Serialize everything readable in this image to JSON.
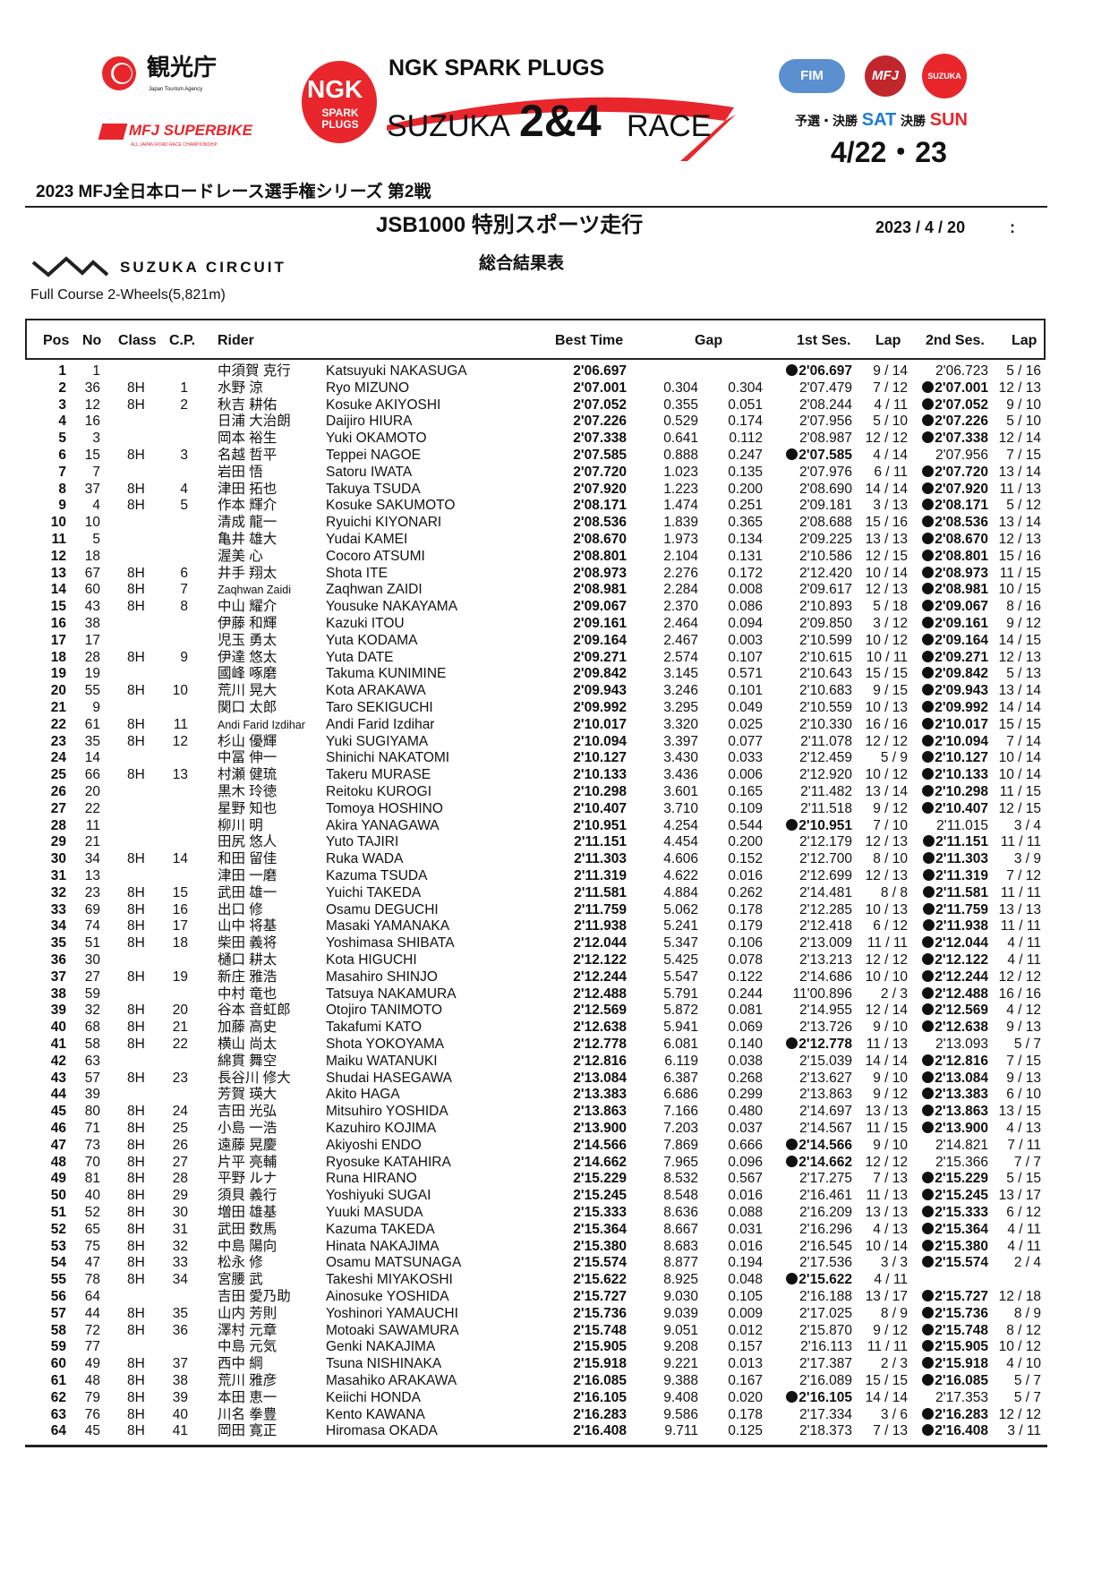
{
  "logos": {
    "tourism": {
      "jp": "観光庁",
      "en": "Japan Tourism Agency"
    },
    "superbike": {
      "text": "MFJ SUPERBIKE",
      "sub": "ALL JAPAN ROAD RACE CHAMPIONSHIP"
    },
    "ngk": {
      "badge": "NGK",
      "badge_sub": "SPARK PLUGS",
      "headline": "NGK SPARK PLUGS",
      "race_pre": "SUZUKA",
      "race_num": "2&4",
      "race_post": "RACE"
    },
    "orgs": [
      "FIM",
      "MFJ",
      "SUZUKA"
    ],
    "schedule": {
      "qual_label": "予選・決勝",
      "sat": "SAT",
      "final_label": "決勝",
      "sun": "SUN",
      "dates": "4/22・23"
    },
    "circuit": "SUZUKA CIRCUIT"
  },
  "colors": {
    "red": "#e8262c",
    "blue": "#1e7bd6",
    "text": "#111111"
  },
  "series_title": "2023 MFJ全日本ロードレース選手権シリーズ 第2戦",
  "session_title": "JSB1000 特別スポーツ走行",
  "date": "2023 / 4 / 20",
  "time": ":",
  "results_title": "総合結果表",
  "course": "Full Course 2-Wheels(5,821m)",
  "columns": {
    "pos": "Pos",
    "no": "No",
    "class": "Class",
    "cp": "C.P.",
    "rider": "Rider",
    "best": "Best Time",
    "gap": "Gap",
    "s1": "1st Ses.",
    "lap1": "Lap",
    "s2": "2nd Ses.",
    "lap2": "Lap"
  },
  "row_fields": [
    "pos",
    "no",
    "class",
    "cp",
    "rider_jp",
    "rider_en",
    "best_time",
    "gap",
    "diff",
    "ses1",
    "lap1",
    "ses2",
    "lap2",
    "best_session"
  ],
  "rows": [
    [
      "1",
      "1",
      "",
      "",
      "中須賀 克行",
      "Katsuyuki NAKASUGA",
      "2'06.697",
      "",
      "",
      "2'06.697",
      "9 / 14",
      "2'06.723",
      "5 / 16",
      1
    ],
    [
      "2",
      "36",
      "8H",
      "1",
      "水野 涼",
      "Ryo MIZUNO",
      "2'07.001",
      "0.304",
      "0.304",
      "2'07.479",
      "7 / 12",
      "2'07.001",
      "12 / 13",
      2
    ],
    [
      "3",
      "12",
      "8H",
      "2",
      "秋吉 耕佑",
      "Kosuke AKIYOSHI",
      "2'07.052",
      "0.355",
      "0.051",
      "2'08.244",
      "4 / 11",
      "2'07.052",
      "9 / 10",
      2
    ],
    [
      "4",
      "16",
      "",
      "",
      "日浦 大治朗",
      "Daijiro HIURA",
      "2'07.226",
      "0.529",
      "0.174",
      "2'07.956",
      "5 / 10",
      "2'07.226",
      "5 / 10",
      2
    ],
    [
      "5",
      "3",
      "",
      "",
      "岡本 裕生",
      "Yuki OKAMOTO",
      "2'07.338",
      "0.641",
      "0.112",
      "2'08.987",
      "12 / 12",
      "2'07.338",
      "12 / 14",
      2
    ],
    [
      "6",
      "15",
      "8H",
      "3",
      "名越 哲平",
      "Teppei NAGOE",
      "2'07.585",
      "0.888",
      "0.247",
      "2'07.585",
      "4 / 14",
      "2'07.956",
      "7 / 15",
      1
    ],
    [
      "7",
      "7",
      "",
      "",
      "岩田 悟",
      "Satoru IWATA",
      "2'07.720",
      "1.023",
      "0.135",
      "2'07.976",
      "6 / 11",
      "2'07.720",
      "13 / 14",
      2
    ],
    [
      "8",
      "37",
      "8H",
      "4",
      "津田 拓也",
      "Takuya TSUDA",
      "2'07.920",
      "1.223",
      "0.200",
      "2'08.690",
      "14 / 14",
      "2'07.920",
      "11 / 13",
      2
    ],
    [
      "9",
      "4",
      "8H",
      "5",
      "作本 輝介",
      "Kosuke SAKUMOTO",
      "2'08.171",
      "1.474",
      "0.251",
      "2'09.181",
      "3 / 13",
      "2'08.171",
      "5 / 12",
      2
    ],
    [
      "10",
      "10",
      "",
      "",
      "清成 龍一",
      "Ryuichi KIYONARI",
      "2'08.536",
      "1.839",
      "0.365",
      "2'08.688",
      "15 / 16",
      "2'08.536",
      "13 / 14",
      2
    ],
    [
      "11",
      "5",
      "",
      "",
      "亀井 雄大",
      "Yudai KAMEI",
      "2'08.670",
      "1.973",
      "0.134",
      "2'09.225",
      "13 / 13",
      "2'08.670",
      "12 / 13",
      2
    ],
    [
      "12",
      "18",
      "",
      "",
      "渥美 心",
      "Cocoro ATSUMI",
      "2'08.801",
      "2.104",
      "0.131",
      "2'10.586",
      "12 / 15",
      "2'08.801",
      "15 / 16",
      2
    ],
    [
      "13",
      "67",
      "8H",
      "6",
      "井手 翔太",
      "Shota ITE",
      "2'08.973",
      "2.276",
      "0.172",
      "2'12.420",
      "10 / 14",
      "2'08.973",
      "11 / 15",
      2
    ],
    [
      "14",
      "60",
      "8H",
      "7",
      "Zaqhwan Zaidi",
      "Zaqhwan ZAIDI",
      "2'08.981",
      "2.284",
      "0.008",
      "2'09.617",
      "12 / 13",
      "2'08.981",
      "10 / 15",
      2
    ],
    [
      "15",
      "43",
      "8H",
      "8",
      "中山 耀介",
      "Yousuke NAKAYAMA",
      "2'09.067",
      "2.370",
      "0.086",
      "2'10.893",
      "5 / 18",
      "2'09.067",
      "8 / 16",
      2
    ],
    [
      "16",
      "38",
      "",
      "",
      "伊藤 和輝",
      "Kazuki ITOU",
      "2'09.161",
      "2.464",
      "0.094",
      "2'09.850",
      "3 / 12",
      "2'09.161",
      "9 / 12",
      2
    ],
    [
      "17",
      "17",
      "",
      "",
      "児玉 勇太",
      "Yuta KODAMA",
      "2'09.164",
      "2.467",
      "0.003",
      "2'10.599",
      "10 / 12",
      "2'09.164",
      "14 / 15",
      2
    ],
    [
      "18",
      "28",
      "8H",
      "9",
      "伊達 悠太",
      "Yuta DATE",
      "2'09.271",
      "2.574",
      "0.107",
      "2'10.615",
      "10 / 11",
      "2'09.271",
      "12 / 13",
      2
    ],
    [
      "19",
      "19",
      "",
      "",
      "國峰 啄磨",
      "Takuma KUNIMINE",
      "2'09.842",
      "3.145",
      "0.571",
      "2'10.643",
      "15 / 15",
      "2'09.842",
      "5 / 13",
      2
    ],
    [
      "20",
      "55",
      "8H",
      "10",
      "荒川 晃大",
      "Kota ARAKAWA",
      "2'09.943",
      "3.246",
      "0.101",
      "2'10.683",
      "9 / 15",
      "2'09.943",
      "13 / 14",
      2
    ],
    [
      "21",
      "9",
      "",
      "",
      "関口 太郎",
      "Taro SEKIGUCHI",
      "2'09.992",
      "3.295",
      "0.049",
      "2'10.559",
      "10 / 13",
      "2'09.992",
      "14 / 14",
      2
    ],
    [
      "22",
      "61",
      "8H",
      "11",
      "Andi Farid Izdihar",
      "Andi Farid Izdihar",
      "2'10.017",
      "3.320",
      "0.025",
      "2'10.330",
      "16 / 16",
      "2'10.017",
      "15 / 15",
      2
    ],
    [
      "23",
      "35",
      "8H",
      "12",
      "杉山 優輝",
      "Yuki SUGIYAMA",
      "2'10.094",
      "3.397",
      "0.077",
      "2'11.078",
      "12 / 12",
      "2'10.094",
      "7 / 14",
      2
    ],
    [
      "24",
      "14",
      "",
      "",
      "中冨 伸一",
      "Shinichi NAKATOMI",
      "2'10.127",
      "3.430",
      "0.033",
      "2'12.459",
      "5 / 9",
      "2'10.127",
      "10 / 14",
      2
    ],
    [
      "25",
      "66",
      "8H",
      "13",
      "村瀬 健琉",
      "Takeru MURASE",
      "2'10.133",
      "3.436",
      "0.006",
      "2'12.920",
      "10 / 12",
      "2'10.133",
      "10 / 14",
      2
    ],
    [
      "26",
      "20",
      "",
      "",
      "黒木 玲徳",
      "Reitoku KUROGI",
      "2'10.298",
      "3.601",
      "0.165",
      "2'11.482",
      "13 / 14",
      "2'10.298",
      "11 / 15",
      2
    ],
    [
      "27",
      "22",
      "",
      "",
      "星野 知也",
      "Tomoya HOSHINO",
      "2'10.407",
      "3.710",
      "0.109",
      "2'11.518",
      "9 / 12",
      "2'10.407",
      "12 / 15",
      2
    ],
    [
      "28",
      "11",
      "",
      "",
      "柳川 明",
      "Akira YANAGAWA",
      "2'10.951",
      "4.254",
      "0.544",
      "2'10.951",
      "7 / 10",
      "2'11.015",
      "3 / 4",
      1
    ],
    [
      "29",
      "21",
      "",
      "",
      "田尻 悠人",
      "Yuto TAJIRI",
      "2'11.151",
      "4.454",
      "0.200",
      "2'12.179",
      "12 / 13",
      "2'11.151",
      "11 / 11",
      2
    ],
    [
      "30",
      "34",
      "8H",
      "14",
      "和田 留佳",
      "Ruka WADA",
      "2'11.303",
      "4.606",
      "0.152",
      "2'12.700",
      "8 / 10",
      "2'11.303",
      "3 / 9",
      2
    ],
    [
      "31",
      "13",
      "",
      "",
      "津田 一磨",
      "Kazuma TSUDA",
      "2'11.319",
      "4.622",
      "0.016",
      "2'12.699",
      "12 / 13",
      "2'11.319",
      "7 / 12",
      2
    ],
    [
      "32",
      "23",
      "8H",
      "15",
      "武田 雄一",
      "Yuichi TAKEDA",
      "2'11.581",
      "4.884",
      "0.262",
      "2'14.481",
      "8 / 8",
      "2'11.581",
      "11 / 11",
      2
    ],
    [
      "33",
      "69",
      "8H",
      "16",
      "出口 修",
      "Osamu DEGUCHI",
      "2'11.759",
      "5.062",
      "0.178",
      "2'12.285",
      "10 / 13",
      "2'11.759",
      "13 / 13",
      2
    ],
    [
      "34",
      "74",
      "8H",
      "17",
      "山中 将基",
      "Masaki YAMANAKA",
      "2'11.938",
      "5.241",
      "0.179",
      "2'12.418",
      "6 / 12",
      "2'11.938",
      "11 / 11",
      2
    ],
    [
      "35",
      "51",
      "8H",
      "18",
      "柴田 義将",
      "Yoshimasa SHIBATA",
      "2'12.044",
      "5.347",
      "0.106",
      "2'13.009",
      "11 / 11",
      "2'12.044",
      "4 / 11",
      2
    ],
    [
      "36",
      "30",
      "",
      "",
      "樋口 耕太",
      "Kota HIGUCHI",
      "2'12.122",
      "5.425",
      "0.078",
      "2'13.213",
      "12 / 12",
      "2'12.122",
      "4 / 11",
      2
    ],
    [
      "37",
      "27",
      "8H",
      "19",
      "新庄 雅浩",
      "Masahiro SHINJO",
      "2'12.244",
      "5.547",
      "0.122",
      "2'14.686",
      "10 / 10",
      "2'12.244",
      "12 / 12",
      2
    ],
    [
      "38",
      "59",
      "",
      "",
      "中村 竜也",
      "Tatsuya NAKAMURA",
      "2'12.488",
      "5.791",
      "0.244",
      "11'00.896",
      "2 / 3",
      "2'12.488",
      "16 / 16",
      2
    ],
    [
      "39",
      "32",
      "8H",
      "20",
      "谷本 音虹郎",
      "Otojiro TANIMOTO",
      "2'12.569",
      "5.872",
      "0.081",
      "2'14.955",
      "12 / 14",
      "2'12.569",
      "4 / 12",
      2
    ],
    [
      "40",
      "68",
      "8H",
      "21",
      "加藤 高史",
      "Takafumi KATO",
      "2'12.638",
      "5.941",
      "0.069",
      "2'13.726",
      "9 / 10",
      "2'12.638",
      "9 / 13",
      2
    ],
    [
      "41",
      "58",
      "8H",
      "22",
      "横山 尚太",
      "Shota YOKOYAMA",
      "2'12.778",
      "6.081",
      "0.140",
      "2'12.778",
      "11 / 13",
      "2'13.093",
      "5 / 7",
      1
    ],
    [
      "42",
      "63",
      "",
      "",
      "綿貫 舞空",
      "Maiku WATANUKI",
      "2'12.816",
      "6.119",
      "0.038",
      "2'15.039",
      "14 / 14",
      "2'12.816",
      "7 / 15",
      2
    ],
    [
      "43",
      "57",
      "8H",
      "23",
      "長谷川 修大",
      "Shudai HASEGAWA",
      "2'13.084",
      "6.387",
      "0.268",
      "2'13.627",
      "9 / 10",
      "2'13.084",
      "9 / 13",
      2
    ],
    [
      "44",
      "39",
      "",
      "",
      "芳賀 瑛大",
      "Akito HAGA",
      "2'13.383",
      "6.686",
      "0.299",
      "2'13.863",
      "9 / 12",
      "2'13.383",
      "6 / 10",
      2
    ],
    [
      "45",
      "80",
      "8H",
      "24",
      "吉田 光弘",
      "Mitsuhiro YOSHIDA",
      "2'13.863",
      "7.166",
      "0.480",
      "2'14.697",
      "13 / 13",
      "2'13.863",
      "13 / 15",
      2
    ],
    [
      "46",
      "71",
      "8H",
      "25",
      "小島 一浩",
      "Kazuhiro KOJIMA",
      "2'13.900",
      "7.203",
      "0.037",
      "2'14.567",
      "11 / 15",
      "2'13.900",
      "4 / 13",
      2
    ],
    [
      "47",
      "73",
      "8H",
      "26",
      "遠藤 晃慶",
      "Akiyoshi ENDO",
      "2'14.566",
      "7.869",
      "0.666",
      "2'14.566",
      "9 / 10",
      "2'14.821",
      "7 / 11",
      1
    ],
    [
      "48",
      "70",
      "8H",
      "27",
      "片平 亮輔",
      "Ryosuke KATAHIRA",
      "2'14.662",
      "7.965",
      "0.096",
      "2'14.662",
      "12 / 12",
      "2'15.366",
      "7 / 7",
      1
    ],
    [
      "49",
      "81",
      "8H",
      "28",
      "平野 ルナ",
      "Runa HIRANO",
      "2'15.229",
      "8.532",
      "0.567",
      "2'17.275",
      "7 / 13",
      "2'15.229",
      "5 / 15",
      2
    ],
    [
      "50",
      "40",
      "8H",
      "29",
      "須貝 義行",
      "Yoshiyuki SUGAI",
      "2'15.245",
      "8.548",
      "0.016",
      "2'16.461",
      "11 / 13",
      "2'15.245",
      "13 / 17",
      2
    ],
    [
      "51",
      "52",
      "8H",
      "30",
      "増田 雄基",
      "Yuuki MASUDA",
      "2'15.333",
      "8.636",
      "0.088",
      "2'16.209",
      "13 / 13",
      "2'15.333",
      "6 / 12",
      2
    ],
    [
      "52",
      "65",
      "8H",
      "31",
      "武田 数馬",
      "Kazuma TAKEDA",
      "2'15.364",
      "8.667",
      "0.031",
      "2'16.296",
      "4 / 13",
      "2'15.364",
      "4 / 11",
      2
    ],
    [
      "53",
      "75",
      "8H",
      "32",
      "中島 陽向",
      "Hinata NAKAJIMA",
      "2'15.380",
      "8.683",
      "0.016",
      "2'16.545",
      "10 / 14",
      "2'15.380",
      "4 / 11",
      2
    ],
    [
      "54",
      "47",
      "8H",
      "33",
      "松永 修",
      "Osamu MATSUNAGA",
      "2'15.574",
      "8.877",
      "0.194",
      "2'17.536",
      "3 / 3",
      "2'15.574",
      "2 / 4",
      2
    ],
    [
      "55",
      "78",
      "8H",
      "34",
      "宮腰 武",
      "Takeshi MIYAKOSHI",
      "2'15.622",
      "8.925",
      "0.048",
      "2'15.622",
      "4 / 11",
      "",
      "",
      1
    ],
    [
      "56",
      "64",
      "",
      "",
      "吉田 愛乃助",
      "Ainosuke YOSHIDA",
      "2'15.727",
      "9.030",
      "0.105",
      "2'16.188",
      "13 / 17",
      "2'15.727",
      "12 / 18",
      2
    ],
    [
      "57",
      "44",
      "8H",
      "35",
      "山内 芳則",
      "Yoshinori YAMAUCHI",
      "2'15.736",
      "9.039",
      "0.009",
      "2'17.025",
      "8 / 9",
      "2'15.736",
      "8 / 9",
      2
    ],
    [
      "58",
      "72",
      "8H",
      "36",
      "澤村 元章",
      "Motoaki SAWAMURA",
      "2'15.748",
      "9.051",
      "0.012",
      "2'15.870",
      "9 / 12",
      "2'15.748",
      "8 / 12",
      2
    ],
    [
      "59",
      "77",
      "",
      "",
      "中島 元気",
      "Genki NAKAJIMA",
      "2'15.905",
      "9.208",
      "0.157",
      "2'16.113",
      "11 / 11",
      "2'15.905",
      "10 / 12",
      2
    ],
    [
      "60",
      "49",
      "8H",
      "37",
      "西中 綱",
      "Tsuna NISHINAKA",
      "2'15.918",
      "9.221",
      "0.013",
      "2'17.387",
      "2 / 3",
      "2'15.918",
      "4 / 10",
      2
    ],
    [
      "61",
      "48",
      "8H",
      "38",
      "荒川 雅彦",
      "Masahiko ARAKAWA",
      "2'16.085",
      "9.388",
      "0.167",
      "2'16.089",
      "15 / 15",
      "2'16.085",
      "5 / 7",
      2
    ],
    [
      "62",
      "79",
      "8H",
      "39",
      "本田 恵一",
      "Keiichi HONDA",
      "2'16.105",
      "9.408",
      "0.020",
      "2'16.105",
      "14 / 14",
      "2'17.353",
      "5 / 7",
      1
    ],
    [
      "63",
      "76",
      "8H",
      "40",
      "川名 拳豊",
      "Kento KAWANA",
      "2'16.283",
      "9.586",
      "0.178",
      "2'17.334",
      "3 / 6",
      "2'16.283",
      "12 / 12",
      2
    ],
    [
      "64",
      "45",
      "8H",
      "41",
      "岡田 寛正",
      "Hiromasa OKADA",
      "2'16.408",
      "9.711",
      "0.125",
      "2'18.373",
      "7 / 13",
      "2'16.408",
      "3 / 11",
      2
    ]
  ]
}
